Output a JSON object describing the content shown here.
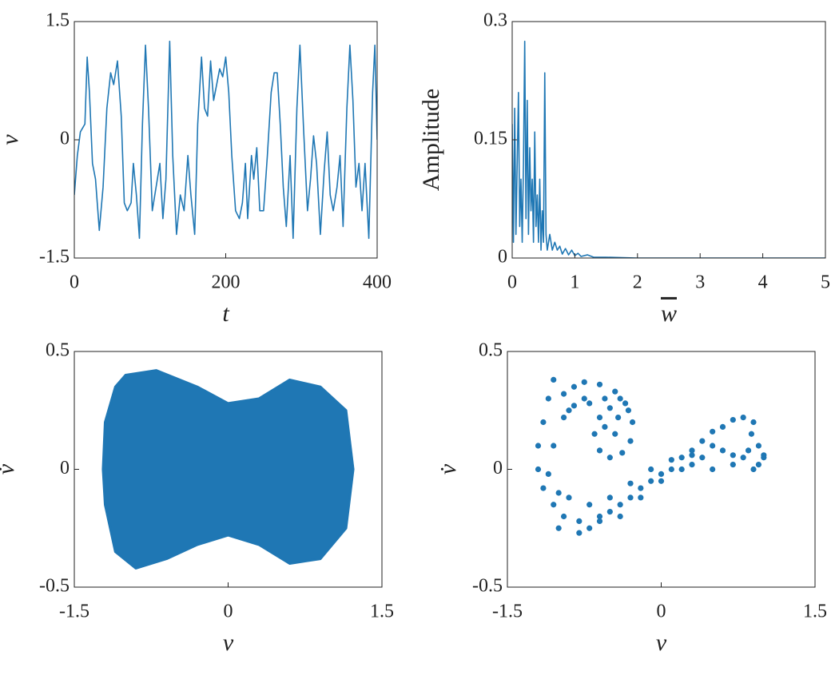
{
  "chart_data": [
    {
      "type": "line",
      "xlabel": "t",
      "ylabel": "v",
      "color": "#1f77b4",
      "xlim": [
        0,
        400
      ],
      "ylim": [
        -1.5,
        1.5
      ],
      "xticks": [
        0,
        200,
        400
      ],
      "yticks": [
        -1.5,
        0,
        1.5
      ],
      "x": [
        0,
        4,
        8,
        11,
        14,
        17,
        20,
        24,
        28,
        33,
        38,
        43,
        48,
        52,
        57,
        62,
        66,
        70,
        75,
        78,
        82,
        86,
        90,
        94,
        98,
        103,
        108,
        113,
        117,
        121,
        126,
        130,
        135,
        140,
        145,
        150,
        154,
        159,
        163,
        168,
        172,
        176,
        180,
        184,
        188,
        192,
        196,
        200,
        204,
        208,
        213,
        218,
        222,
        226,
        229,
        234,
        237,
        241,
        245,
        250,
        255,
        260,
        264,
        268,
        272,
        276,
        280,
        285,
        289,
        294,
        298,
        303,
        308,
        312,
        316,
        320,
        325,
        330,
        334,
        338,
        342,
        347,
        351,
        355,
        360,
        364,
        368,
        372,
        376,
        380,
        384,
        389,
        394,
        397,
        400
      ],
      "values": [
        -0.7,
        -0.2,
        0.1,
        0.15,
        0.2,
        1.05,
        0.6,
        -0.3,
        -0.5,
        -1.15,
        -0.6,
        0.4,
        0.85,
        0.7,
        1.0,
        0.3,
        -0.8,
        -0.9,
        -0.8,
        -0.3,
        -0.7,
        -1.25,
        0.2,
        1.2,
        0.4,
        -0.9,
        -0.6,
        -0.3,
        -1.0,
        -0.5,
        1.25,
        -0.2,
        -1.2,
        -0.7,
        -0.9,
        -0.2,
        -0.7,
        -1.2,
        0.2,
        1.05,
        0.4,
        0.3,
        1.0,
        0.5,
        0.7,
        0.9,
        0.8,
        1.05,
        0.6,
        -0.2,
        -0.9,
        -1.0,
        -0.8,
        -0.3,
        -1.0,
        -0.2,
        -0.5,
        -0.1,
        -0.9,
        -0.9,
        -0.2,
        0.6,
        0.85,
        0.85,
        0.2,
        -0.6,
        -1.1,
        -0.2,
        -1.25,
        0.4,
        1.2,
        0.1,
        -0.9,
        -0.5,
        0.05,
        -0.3,
        -1.2,
        -0.4,
        0.1,
        -0.7,
        -0.9,
        -0.6,
        -0.2,
        -1.1,
        0.4,
        1.2,
        0.5,
        -0.6,
        -0.3,
        -0.9,
        -0.3,
        -1.25,
        0.6,
        1.2,
        0.0
      ]
    },
    {
      "type": "line",
      "xlabel": "w",
      "ylabel": "Amplitude",
      "color": "#1f77b4",
      "xlim": [
        0,
        5
      ],
      "ylim": [
        0,
        0.3
      ],
      "xticks": [
        0,
        1,
        2,
        3,
        4,
        5
      ],
      "yticks": [
        0,
        0.15,
        0.3
      ],
      "x": [
        0,
        0.02,
        0.04,
        0.06,
        0.08,
        0.1,
        0.12,
        0.14,
        0.16,
        0.18,
        0.2,
        0.22,
        0.24,
        0.26,
        0.28,
        0.3,
        0.32,
        0.34,
        0.36,
        0.38,
        0.4,
        0.42,
        0.44,
        0.46,
        0.48,
        0.5,
        0.52,
        0.54,
        0.56,
        0.6,
        0.64,
        0.68,
        0.72,
        0.76,
        0.8,
        0.85,
        0.9,
        0.95,
        1.0,
        1.05,
        1.1,
        1.2,
        1.3,
        1.5,
        2,
        3,
        4,
        5
      ],
      "values": [
        0.17,
        0.02,
        0.19,
        0.03,
        0.12,
        0.21,
        0.04,
        0.1,
        0.02,
        0.12,
        0.275,
        0.05,
        0.2,
        0.03,
        0.14,
        0.06,
        0.1,
        0.02,
        0.16,
        0.04,
        0.08,
        0.02,
        0.1,
        0.01,
        0.06,
        0.02,
        0.235,
        0.03,
        0.01,
        0.03,
        0.01,
        0.02,
        0.01,
        0.015,
        0.005,
        0.012,
        0.004,
        0.01,
        0.003,
        0.006,
        0.002,
        0.004,
        0.001,
        0.001,
        0,
        0,
        0,
        0
      ]
    },
    {
      "type": "line",
      "fill": true,
      "xlabel": "v",
      "ylabel": "v̇",
      "color": "#1f77b4",
      "xlim": [
        -1.5,
        1.5
      ],
      "ylim": [
        -0.5,
        0.5
      ],
      "xticks": [
        -1.5,
        0,
        1.5
      ],
      "yticks": [
        -0.5,
        0,
        0.5
      ],
      "x": [
        -1.1,
        -1.0,
        -0.7,
        -0.3,
        0,
        0.3,
        0.6,
        0.9,
        1.15,
        1.22,
        1.15,
        0.9,
        0.6,
        0.3,
        0,
        -0.3,
        -0.6,
        -0.9,
        -1.1,
        -1.2,
        -1.22,
        -1.2
      ],
      "values": [
        0.35,
        0.4,
        0.42,
        0.35,
        0.28,
        0.3,
        0.38,
        0.35,
        0.25,
        0,
        -0.25,
        -0.38,
        -0.4,
        -0.32,
        -0.28,
        -0.32,
        -0.38,
        -0.42,
        -0.35,
        -0.15,
        0,
        0.2
      ]
    },
    {
      "type": "scatter",
      "xlabel": "v",
      "ylabel": "v̇",
      "color": "#1f77b4",
      "xlim": [
        -1.5,
        1.5
      ],
      "ylim": [
        -0.5,
        0.5
      ],
      "xticks": [
        -1.5,
        0,
        1.5
      ],
      "yticks": [
        -0.5,
        0,
        0.5
      ],
      "x": [
        -1.1,
        -1.15,
        -1.2,
        -1.2,
        -1.15,
        -1.05,
        -0.95,
        -0.8,
        -0.6,
        -0.4,
        -0.2,
        0,
        0.2,
        0.4,
        0.6,
        0.8,
        0.9,
        0.95,
        1.0,
        -1.0,
        -0.8,
        -0.6,
        -0.4,
        -0.2,
        0,
        0.2,
        0.4,
        0.6,
        0.8,
        0.95,
        -0.9,
        -0.7,
        -0.5,
        -0.3,
        -0.1,
        0.1,
        0.3,
        0.5,
        0.7,
        0.9,
        1.0,
        -1.05,
        -0.95,
        -0.85,
        -0.75,
        -0.6,
        -0.45,
        -0.35,
        -0.28,
        -0.3,
        -0.38,
        -0.5,
        -0.6,
        -0.65,
        -0.6,
        -0.5,
        -0.42,
        -0.45,
        -0.55,
        -0.7,
        -0.85,
        -0.95,
        -1.05,
        -1.1,
        -1.0,
        -0.9,
        -0.75,
        -0.55,
        -0.4,
        -0.32,
        -0.7,
        -0.5,
        -0.3,
        -0.1,
        0.1,
        0.3,
        0.5,
        0.7,
        0.85,
        0.88,
        0.7,
        0.5,
        0.3
      ],
      "values": [
        0.3,
        0.2,
        0.1,
        0.0,
        -0.08,
        -0.15,
        -0.2,
        -0.22,
        -0.2,
        -0.15,
        -0.08,
        -0.02,
        0.05,
        0.12,
        0.18,
        0.22,
        0.2,
        0.1,
        0.05,
        -0.25,
        -0.27,
        -0.22,
        -0.2,
        -0.12,
        -0.05,
        0.0,
        0.05,
        0.08,
        0.05,
        0.02,
        -0.12,
        -0.15,
        -0.12,
        -0.06,
        0.0,
        0.04,
        0.06,
        0.1,
        0.06,
        0.0,
        0.06,
        0.38,
        0.32,
        0.35,
        0.37,
        0.36,
        0.33,
        0.28,
        0.2,
        0.12,
        0.07,
        0.05,
        0.08,
        0.15,
        0.22,
        0.26,
        0.22,
        0.15,
        0.18,
        0.28,
        0.27,
        0.22,
        0.1,
        -0.02,
        -0.1,
        0.25,
        0.3,
        0.3,
        0.3,
        0.25,
        -0.25,
        -0.18,
        -0.12,
        -0.05,
        0.0,
        0.02,
        0.0,
        0.02,
        0.08,
        0.15,
        0.21,
        0.16,
        0.08
      ]
    }
  ]
}
